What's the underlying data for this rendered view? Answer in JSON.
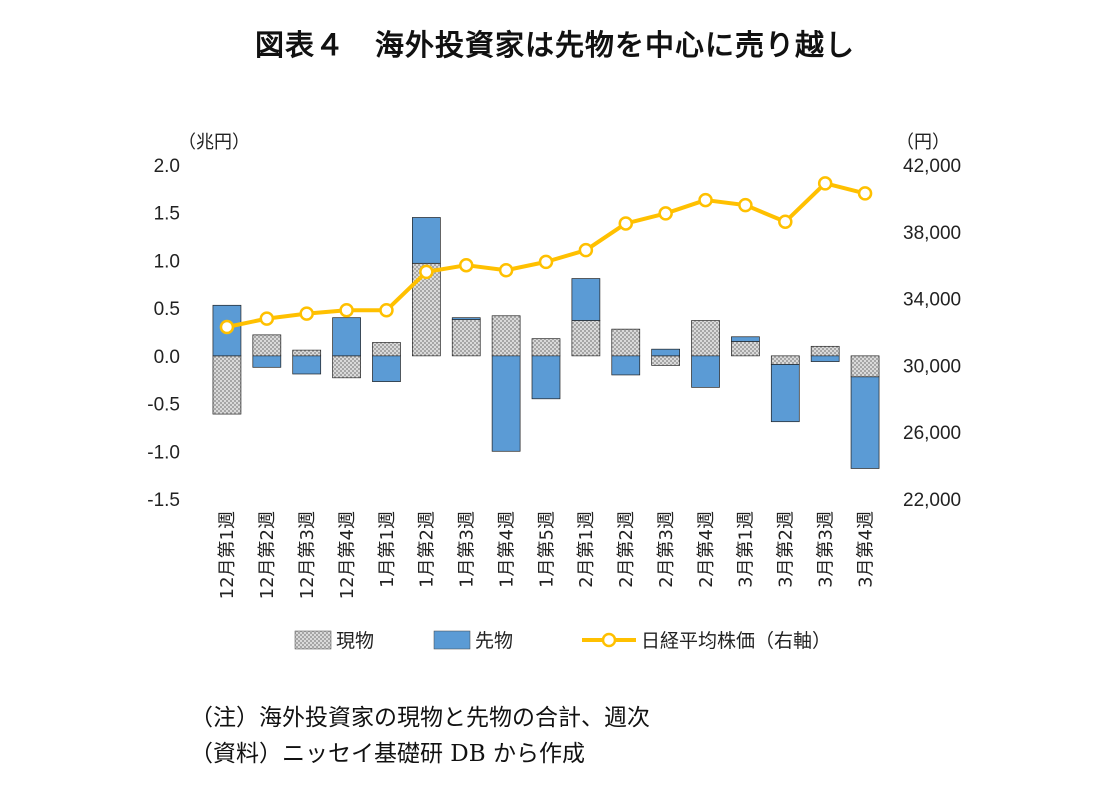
{
  "chart_data": {
    "type": "bar",
    "title": "図表４　海外投資家は先物を中心に売り越し",
    "categories": [
      "12月第1週",
      "12月第2週",
      "12月第3週",
      "12月第4週",
      "1月第1週",
      "1月第2週",
      "1月第3週",
      "1月第4週",
      "1月第5週",
      "2月第1週",
      "2月第2週",
      "2月第3週",
      "2月第4週",
      "3月第1週",
      "3月第2週",
      "3月第3週",
      "3月第4週"
    ],
    "series": [
      {
        "name": "現物",
        "kind": "bar",
        "axis": "left",
        "color": "#a6a6a6",
        "values": [
          -0.61,
          0.22,
          0.06,
          -0.23,
          0.14,
          0.97,
          0.38,
          0.42,
          0.18,
          0.37,
          0.28,
          -0.1,
          0.37,
          0.15,
          -0.09,
          0.1,
          -0.22
        ]
      },
      {
        "name": "先物",
        "kind": "bar",
        "axis": "left",
        "color": "#5b9bd5",
        "values": [
          0.53,
          -0.12,
          -0.19,
          0.4,
          -0.27,
          0.48,
          0.02,
          -1.0,
          -0.45,
          0.44,
          -0.2,
          0.07,
          -0.33,
          0.05,
          -0.6,
          -0.06,
          -0.96
        ]
      },
      {
        "name": "日経平均株価（右軸）",
        "kind": "line",
        "axis": "right",
        "color": "#ffc000",
        "values": [
          32300,
          32800,
          33100,
          33300,
          33300,
          35600,
          36000,
          35700,
          36200,
          36900,
          38500,
          39100,
          39900,
          39600,
          38600,
          40900,
          40300
        ]
      }
    ],
    "y_left": {
      "unit": "（兆円）",
      "ylim": [
        -1.5,
        2.0
      ],
      "ticks": [
        "2.0",
        "1.5",
        "1.0",
        "0.5",
        "0.0",
        "-0.5",
        "-1.0",
        "-1.5"
      ]
    },
    "y_right": {
      "unit": "（円）",
      "ylim": [
        22000,
        42000
      ],
      "ticks": [
        "42,000",
        "38,000",
        "34,000",
        "30,000",
        "26,000",
        "22,000"
      ]
    },
    "legend_position": "bottom"
  },
  "notes": {
    "note1": "（注）海外投資家の現物と先物の合計、週次",
    "note2": "（資料）ニッセイ基礎研 DB から作成"
  },
  "colors": {
    "line_marker_fill": "#ffffff",
    "bar_edge": "#222222"
  }
}
